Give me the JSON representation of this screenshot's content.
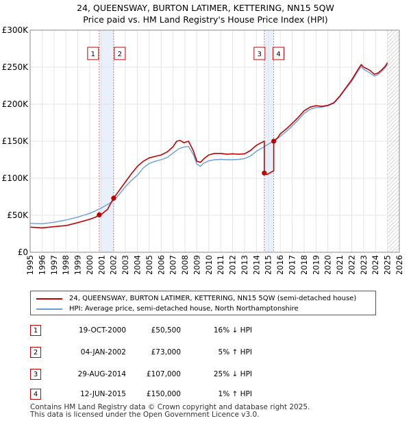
{
  "chart_data": {
    "type": "line",
    "title_lines": [
      "24, QUEENSWAY, BURTON LATIMER, KETTERING, NN15 5QW",
      "Price paid vs. HM Land Registry's House Price Index (HPI)"
    ],
    "xlim": [
      1995,
      2026
    ],
    "ylim": [
      0,
      300000
    ],
    "y_ticks": [
      {
        "value": 0,
        "label": "£0"
      },
      {
        "value": 50000,
        "label": "£50K"
      },
      {
        "value": 100000,
        "label": "£100K"
      },
      {
        "value": 150000,
        "label": "£150K"
      },
      {
        "value": 200000,
        "label": "£200K"
      },
      {
        "value": 250000,
        "label": "£250K"
      },
      {
        "value": 300000,
        "label": "£300K"
      }
    ],
    "x_ticks": [
      "1995",
      "1996",
      "1997",
      "1998",
      "1999",
      "2000",
      "2001",
      "2002",
      "2003",
      "2004",
      "2005",
      "2006",
      "2007",
      "2008",
      "2009",
      "2010",
      "2011",
      "2012",
      "2013",
      "2014",
      "2015",
      "2016",
      "2017",
      "2018",
      "2019",
      "2020",
      "2021",
      "2022",
      "2023",
      "2024",
      "2025",
      "2026"
    ],
    "grid": true,
    "future_hatch_from": 2025.0,
    "series": [
      {
        "name": "24, QUEENSWAY, BURTON LATIMER, KETTERING, NN15 5QW (semi-detached house)",
        "color": "#c00000",
        "x": [
          1995.0,
          1996.0,
          1997.0,
          1998.0,
          1999.0,
          2000.0,
          2000.5,
          2000.8,
          2000.8,
          2001.0,
          2001.5,
          2002.0,
          2002.0,
          2002.5,
          2003.0,
          2003.5,
          2004.0,
          2004.5,
          2005.0,
          2005.5,
          2006.0,
          2006.5,
          2007.0,
          2007.3,
          2007.6,
          2007.9,
          2008.3,
          2008.7,
          2009.0,
          2009.3,
          2009.6,
          2010.0,
          2010.5,
          2011.0,
          2011.5,
          2012.0,
          2012.5,
          2013.0,
          2013.5,
          2014.0,
          2014.4,
          2014.66,
          2014.66,
          2014.9,
          2015.2,
          2015.45,
          2015.45,
          2015.8,
          2016.0,
          2016.5,
          2017.0,
          2017.5,
          2018.0,
          2018.5,
          2019.0,
          2019.5,
          2020.0,
          2020.5,
          2021.0,
          2021.5,
          2022.0,
          2022.5,
          2022.8,
          2023.0,
          2023.5,
          2023.9,
          2024.2,
          2024.5,
          2024.8,
          2025.0
        ],
        "y": [
          34000,
          33000,
          34500,
          36000,
          40000,
          44500,
          47500,
          50500,
          50500,
          51500,
          58000,
          73000,
          73000,
          84000,
          95000,
          106000,
          116000,
          123000,
          127500,
          129500,
          131500,
          135500,
          142500,
          150000,
          151000,
          148000,
          150000,
          137000,
          123000,
          121500,
          126500,
          131500,
          133500,
          133500,
          132500,
          133000,
          132500,
          133000,
          137500,
          144500,
          148000,
          150000,
          107000,
          105000,
          108000,
          110000,
          150000,
          155000,
          160000,
          166500,
          174000,
          182000,
          191000,
          196000,
          198000,
          197000,
          198500,
          202000,
          211000,
          222000,
          233000,
          246000,
          253500,
          250000,
          246000,
          240500,
          242000,
          246000,
          251000,
          256000
        ]
      },
      {
        "name": "HPI: Average price, semi-detached house, North Northamptonshire",
        "color": "#6a9ed4",
        "x": [
          1995.0,
          1996.0,
          1997.0,
          1998.0,
          1999.0,
          2000.0,
          2000.5,
          2001.0,
          2001.5,
          2002.0,
          2002.5,
          2003.0,
          2003.5,
          2004.0,
          2004.5,
          2005.0,
          2005.5,
          2006.0,
          2006.5,
          2007.0,
          2007.5,
          2007.9,
          2008.3,
          2008.7,
          2009.0,
          2009.3,
          2009.6,
          2010.0,
          2010.5,
          2011.0,
          2011.5,
          2012.0,
          2012.5,
          2013.0,
          2013.5,
          2014.0,
          2014.5,
          2015.0,
          2015.5,
          2016.0,
          2016.5,
          2017.0,
          2017.5,
          2018.0,
          2018.5,
          2019.0,
          2019.5,
          2020.0,
          2020.5,
          2021.0,
          2021.5,
          2022.0,
          2022.5,
          2022.8,
          2023.0,
          2023.5,
          2023.9,
          2024.2,
          2024.5,
          2024.8,
          2025.0
        ],
        "y": [
          39000,
          38500,
          40500,
          43500,
          47500,
          52500,
          56000,
          60000,
          64500,
          69500,
          78500,
          88500,
          97000,
          104000,
          114000,
          120000,
          123000,
          125000,
          128000,
          134000,
          140000,
          142000,
          143000,
          132000,
          119000,
          116000,
          120500,
          123500,
          125000,
          125500,
          125000,
          125000,
          125500,
          126500,
          130000,
          136500,
          141000,
          146000,
          150500,
          156500,
          163000,
          170500,
          178500,
          187500,
          193000,
          195500,
          196000,
          198000,
          201000,
          210000,
          221000,
          231000,
          244000,
          251000,
          247000,
          242500,
          238000,
          240000,
          244000,
          249000,
          254000
        ]
      }
    ],
    "sales": [
      {
        "id": "1",
        "x": 2000.8,
        "y": 50500,
        "date": "19-OCT-2000",
        "price": "£50,500",
        "hpi": "16% ↓ HPI"
      },
      {
        "id": "2",
        "x": 2002.01,
        "y": 73000,
        "date": "04-JAN-2002",
        "price": "£73,000",
        "hpi": "5% ↑ HPI"
      },
      {
        "id": "3",
        "x": 2014.66,
        "y": 107000,
        "date": "29-AUG-2014",
        "price": "£107,000",
        "hpi": "25% ↓ HPI"
      },
      {
        "id": "4",
        "x": 2015.45,
        "y": 150000,
        "date": "12-JUN-2015",
        "price": "£150,000",
        "hpi": "1% ↑ HPI"
      }
    ],
    "legend": [
      {
        "label": "24, QUEENSWAY, BURTON LATIMER, KETTERING, NN15 5QW (semi-detached house)",
        "color": "#c00000"
      },
      {
        "label": "HPI: Average price, semi-detached house, North Northamptonshire",
        "color": "#6a9ed4"
      }
    ]
  },
  "footer": {
    "line1": "Contains HM Land Registry data © Crown copyright and database right 2025.",
    "line2": "This data is licensed under the Open Government Licence v3.0."
  }
}
